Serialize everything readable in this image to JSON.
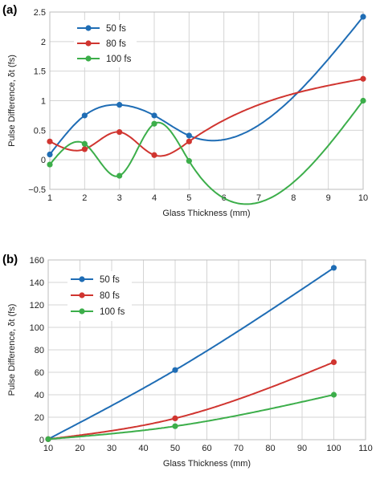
{
  "colors": {
    "blue": "#1f6db5",
    "red": "#d03530",
    "green": "#3cae4a"
  },
  "chart_data": [
    {
      "panel_label": "(a)",
      "type": "line",
      "xlabel": "Glass Thickness (mm)",
      "ylabel": "Pulse Difference, δt (fs)",
      "xlim": [
        1,
        10
      ],
      "ylim": [
        -0.5,
        2.5
      ],
      "xticks": [
        1,
        2,
        3,
        4,
        5,
        6,
        7,
        8,
        9,
        10
      ],
      "yticks": [
        -0.5,
        0,
        0.5,
        1,
        1.5,
        2,
        2.5
      ],
      "ytick_labels": [
        "−0.5",
        "0",
        "0.5",
        "1",
        "1.5",
        "2",
        "2.5"
      ],
      "grid": true,
      "legend_position": "top-left",
      "series": [
        {
          "name": "50 fs",
          "color": "#1f6db5",
          "x": [
            1,
            2,
            3,
            4,
            5,
            10
          ],
          "y": [
            0.09,
            0.75,
            0.93,
            0.75,
            0.41,
            2.42
          ]
        },
        {
          "name": "80 fs",
          "color": "#d03530",
          "x": [
            1,
            2,
            3,
            4,
            5,
            10
          ],
          "y": [
            0.31,
            0.18,
            0.47,
            0.08,
            0.31,
            1.37
          ]
        },
        {
          "name": "100 fs",
          "color": "#3cae4a",
          "x": [
            1,
            2,
            3,
            4,
            5,
            10
          ],
          "y": [
            -0.08,
            0.27,
            -0.27,
            0.61,
            -0.02,
            1.0
          ]
        }
      ]
    },
    {
      "panel_label": "(b)",
      "type": "line",
      "xlabel": "Glass Thickness (mm)",
      "ylabel": "Pulse Difference, δt (fs)",
      "xlim": [
        10,
        110
      ],
      "ylim": [
        0,
        160
      ],
      "xticks": [
        10,
        20,
        30,
        40,
        50,
        60,
        70,
        80,
        90,
        100,
        110
      ],
      "yticks": [
        0,
        20,
        40,
        60,
        80,
        100,
        120,
        140,
        160
      ],
      "grid": true,
      "legend_position": "top-left",
      "series": [
        {
          "name": "50 fs",
          "color": "#1f6db5",
          "x": [
            10,
            50,
            100
          ],
          "y": [
            0.5,
            62,
            153
          ]
        },
        {
          "name": "80 fs",
          "color": "#d03530",
          "x": [
            10,
            50,
            100
          ],
          "y": [
            0.5,
            19,
            69
          ]
        },
        {
          "name": "100 fs",
          "color": "#3cae4a",
          "x": [
            10,
            50,
            100
          ],
          "y": [
            0.5,
            12,
            40
          ]
        }
      ]
    }
  ]
}
